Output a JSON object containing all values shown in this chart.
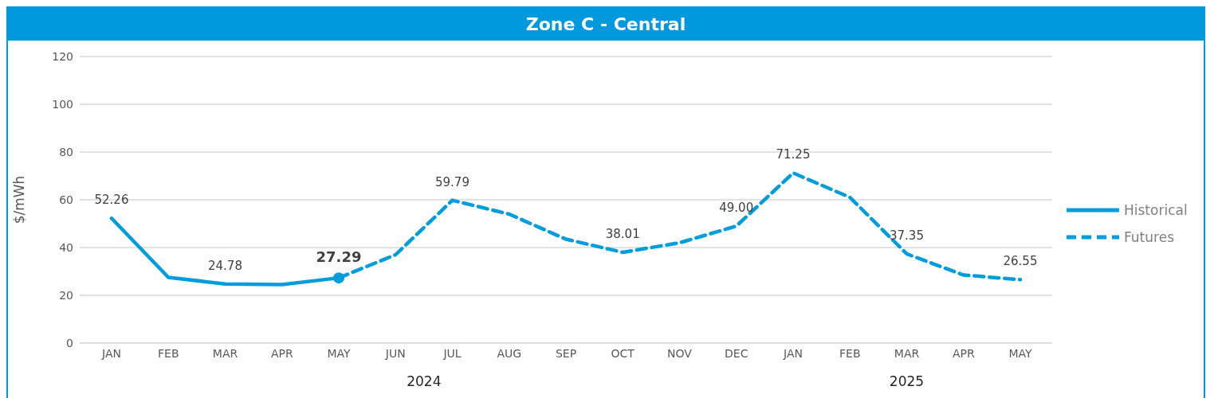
{
  "chart_data": {
    "type": "line",
    "title": "Zone C - Central",
    "ylabel": "$/mWh",
    "categories": [
      "JAN",
      "FEB",
      "MAR",
      "APR",
      "MAY",
      "JUN",
      "JUL",
      "AUG",
      "SEP",
      "OCT",
      "NOV",
      "DEC",
      "JAN",
      "FEB",
      "MAR",
      "APR",
      "MAY"
    ],
    "series": [
      {
        "name": "Historical",
        "color": "#009ddc",
        "line_style": "solid",
        "values": [
          52.26,
          27.5,
          24.78,
          24.5,
          27.29,
          null,
          null,
          null,
          null,
          null,
          null,
          null,
          null,
          null,
          null,
          null,
          null
        ],
        "value_labels": [
          "52.26",
          null,
          "24.78",
          null,
          null,
          null,
          null,
          null,
          null,
          null,
          null,
          null,
          null,
          null,
          null,
          null,
          null
        ]
      },
      {
        "name": "Futures",
        "color": "#009ddc",
        "line_style": "dashed",
        "values": [
          null,
          null,
          null,
          null,
          27.29,
          37,
          59.79,
          54,
          43.5,
          38.01,
          42,
          49.0,
          71.25,
          61,
          37.35,
          28.5,
          26.55
        ],
        "value_labels": [
          null,
          null,
          null,
          null,
          null,
          null,
          "59.79",
          null,
          null,
          "38.01",
          null,
          "49.00",
          "71.25",
          null,
          "37.35",
          null,
          "26.55"
        ]
      },
      {
        "type": "scatter",
        "color": "#009ddc",
        "marker": "circle",
        "values": [
          null,
          null,
          null,
          null,
          27.29,
          null,
          null,
          null,
          null,
          null,
          null,
          null,
          null,
          null,
          null,
          null,
          null
        ],
        "value_labels": [
          null,
          null,
          null,
          null,
          "27.29",
          null,
          null,
          null,
          null,
          null,
          null,
          null,
          null,
          null,
          null,
          null,
          null
        ]
      }
    ],
    "ylim": [
      0,
      120
    ],
    "yticks": [
      0,
      20,
      40,
      60,
      80,
      100,
      120
    ],
    "grid": "y",
    "legend": "right",
    "annotations": [
      "2024",
      "2025"
    ]
  }
}
